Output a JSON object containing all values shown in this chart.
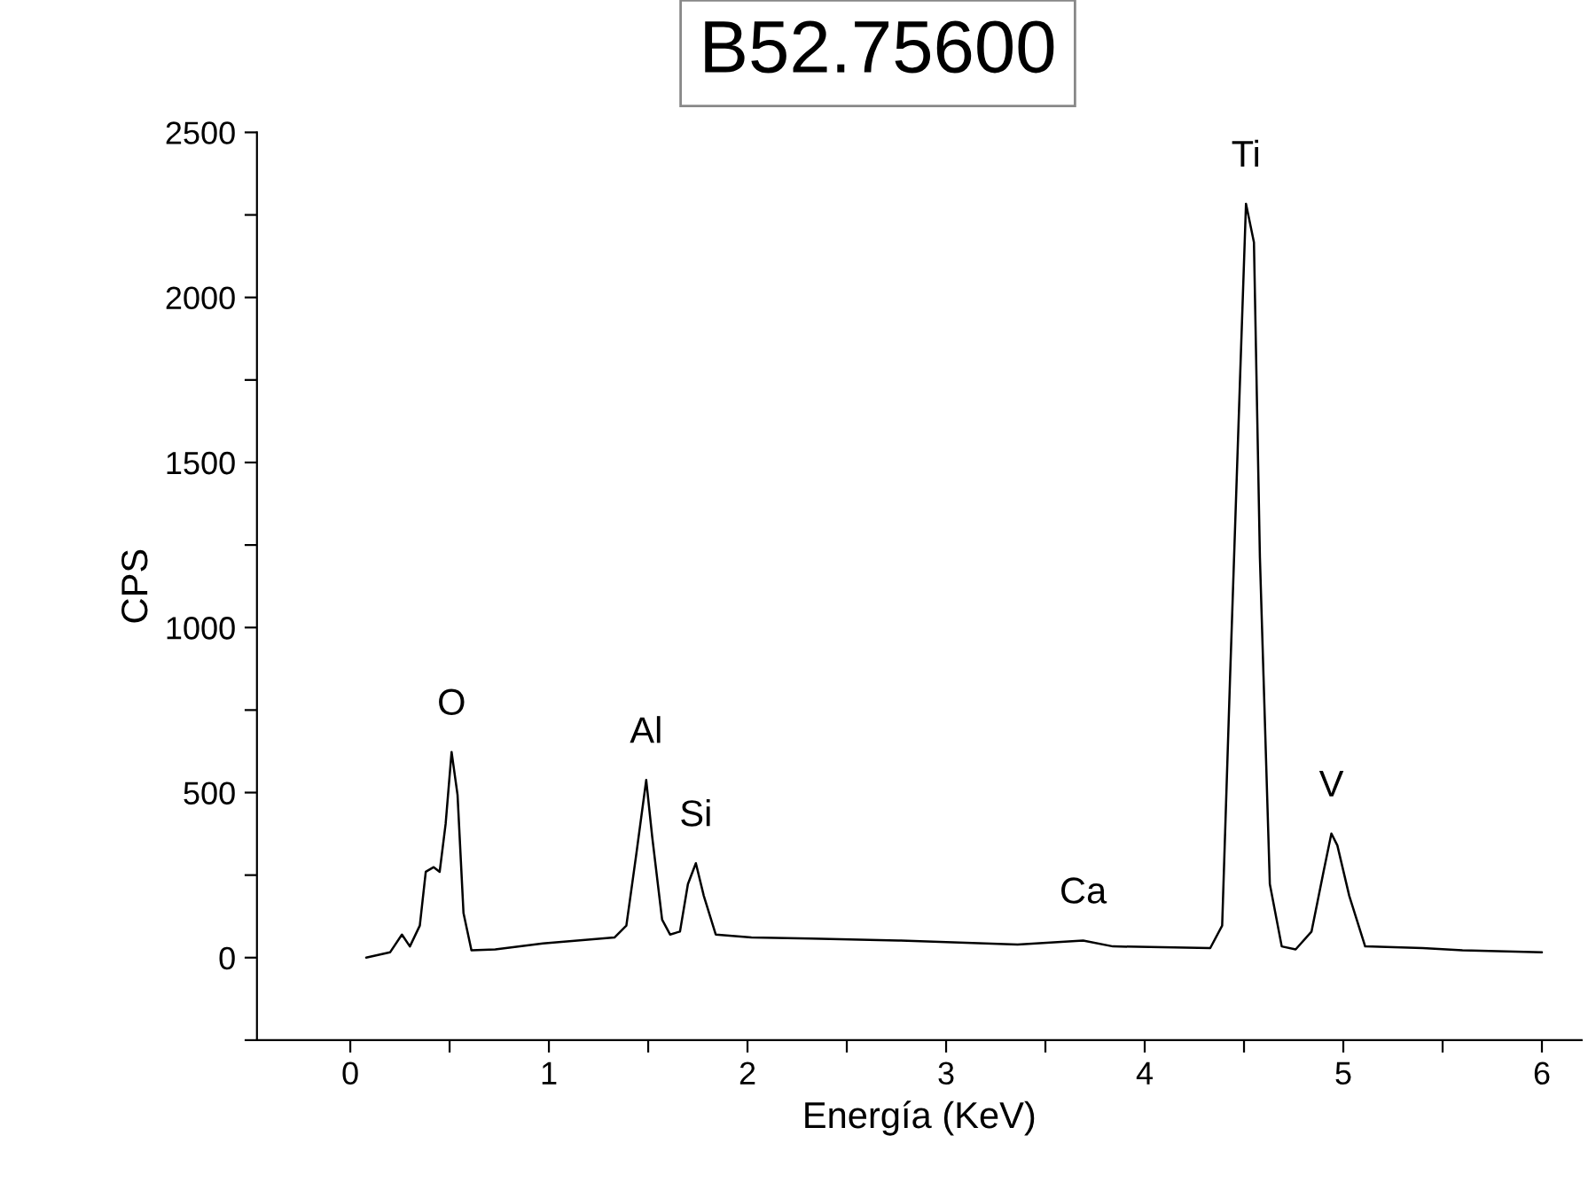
{
  "chart_data": {
    "type": "line",
    "title": "B52.75600",
    "xlabel": "Energía (KeV)",
    "ylabel": "CPS",
    "x": [
      0.08,
      0.2,
      0.26,
      0.3,
      0.35,
      0.38,
      0.42,
      0.45,
      0.48,
      0.51,
      0.54,
      0.57,
      0.61,
      0.73,
      0.97,
      1.33,
      1.39,
      1.44,
      1.49,
      1.52,
      1.57,
      1.61,
      1.66,
      1.7,
      1.74,
      1.78,
      1.84,
      2.02,
      2.32,
      2.76,
      3.36,
      3.69,
      3.84,
      4.33,
      4.39,
      4.43,
      4.48,
      4.51,
      4.55,
      4.58,
      4.63,
      4.69,
      4.76,
      4.84,
      4.9,
      4.94,
      4.97,
      5.03,
      5.11,
      5.4,
      5.6,
      6.0
    ],
    "series": [
      {
        "color": "#000000",
        "values": [
          0,
          16,
          70,
          34,
          97,
          260,
          274,
          260,
          405,
          623,
          493,
          135,
          22,
          25,
          43,
          61,
          97,
          313,
          538,
          367,
          115,
          70,
          79,
          223,
          286,
          187,
          70,
          61,
          58,
          52,
          40,
          52,
          34,
          29,
          97,
          853,
          1753,
          2284,
          2167,
          1213,
          223,
          34,
          25,
          79,
          259,
          376,
          340,
          187,
          34,
          29,
          22,
          16
        ]
      }
    ],
    "xlim": [
      -0.47,
      6.2
    ],
    "ylim": [
      -250,
      2500
    ],
    "xticks": [
      0,
      {
        "value": 0.5,
        "label": null
      },
      1,
      {
        "value": 1.5,
        "label": null
      },
      2,
      {
        "value": 2.5,
        "label": null
      },
      3,
      {
        "value": 3.5,
        "label": null
      },
      4,
      {
        "value": 4.5,
        "label": null
      },
      5,
      {
        "value": 5.5,
        "label": null
      },
      6
    ],
    "yticks": [
      {
        "value": -250,
        "label": null
      },
      0,
      {
        "value": 250,
        "label": null
      },
      500,
      {
        "value": 750,
        "label": null
      },
      1000,
      {
        "value": 1250,
        "label": null
      },
      1500,
      {
        "value": 1750,
        "label": null
      },
      2000,
      {
        "value": 2250,
        "label": null
      },
      2500
    ],
    "annotations": [
      {
        "text": "O",
        "x": 0.51,
        "y": 623
      },
      {
        "text": "Al",
        "x": 1.49,
        "y": 538
      },
      {
        "text": "Si",
        "x": 1.74,
        "y": 286
      },
      {
        "text": "Ca",
        "x": 3.69,
        "y": 52
      },
      {
        "text": "Ti",
        "x": 4.51,
        "y": 2284
      },
      {
        "text": "V",
        "x": 4.94,
        "y": 376
      }
    ],
    "grid": false,
    "legend": false,
    "marker": "none",
    "line_style": "solid"
  }
}
